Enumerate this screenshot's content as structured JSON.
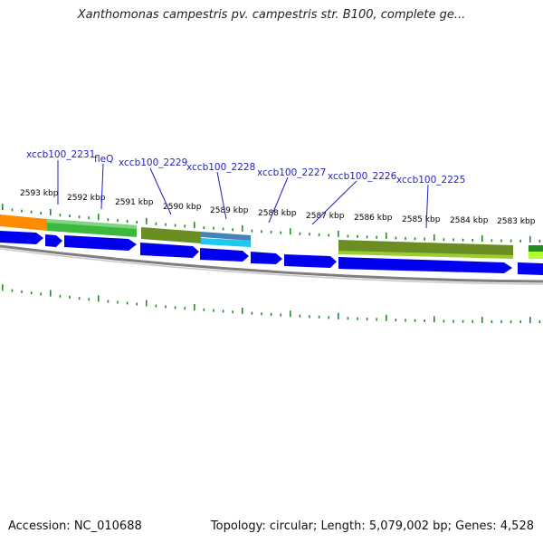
{
  "title": "Xanthomonas campestris pv. campestris str. B100, complete ge...",
  "footer": {
    "accession": "Accession: NC_010688",
    "info": "Topology: circular; Length: 5,079,002 bp; Genes: 4,528"
  },
  "colors": {
    "background": "#ffffff",
    "backbone": "#808080",
    "cds_arrow": "#0000ee",
    "feature_orange": "#ff8c00",
    "feature_green": "#3cb83c",
    "feature_olive": "#6b8e23",
    "feature_cyan": "#1ec8f0",
    "gene_label": "#1f1fbf",
    "tick": "#228b22"
  },
  "scale_labels": [
    "2593 kbp",
    "2592 kbp",
    "2591 kbp",
    "2590 kbp",
    "2589 kbp",
    "2588 kbp",
    "2587 kbp",
    "2586 kbp",
    "2585 kbp",
    "2584 kbp",
    "2583 kbp"
  ],
  "gene_labels": [
    "xccb100_2231",
    "fleQ",
    "xccb100_2229",
    "xccb100_2228",
    "xccb100_2227",
    "xccb100_2226",
    "xccb100_2225"
  ]
}
